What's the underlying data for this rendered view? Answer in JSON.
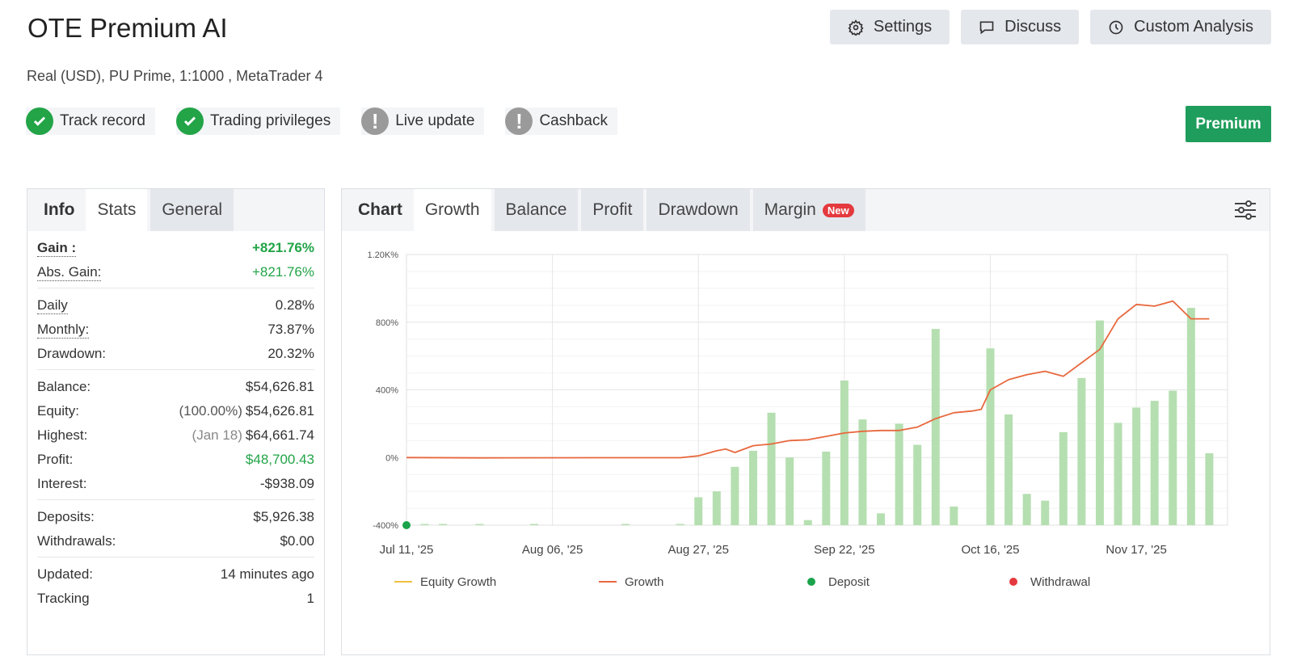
{
  "header": {
    "title": "OTE Premium AI",
    "subtitle": "Real (USD), PU Prime, 1:1000 , MetaTrader 4",
    "buttons": {
      "settings": "Settings",
      "discuss": "Discuss",
      "custom_analysis": "Custom Analysis"
    },
    "premium": "Premium"
  },
  "badges": [
    {
      "label": "Track record",
      "status": "ok"
    },
    {
      "label": "Trading privileges",
      "status": "ok"
    },
    {
      "label": "Live update",
      "status": "warn"
    },
    {
      "label": "Cashback",
      "status": "warn"
    }
  ],
  "left_tabs": {
    "info": "Info",
    "stats": "Stats",
    "general": "General"
  },
  "stats": {
    "gain_label": "Gain :",
    "gain": "+821.76%",
    "abs_gain_label": "Abs. Gain:",
    "abs_gain": "+821.76%",
    "daily_label": "Daily",
    "daily": "0.28%",
    "monthly_label": "Monthly:",
    "monthly": "73.87%",
    "drawdown_label": "Drawdown:",
    "drawdown": "20.32%",
    "balance_label": "Balance:",
    "balance": "$54,626.81",
    "equity_label": "Equity:",
    "equity_pct": "(100.00%)",
    "equity": "$54,626.81",
    "highest_label": "Highest:",
    "highest_date": "(Jan 18)",
    "highest": "$64,661.74",
    "profit_label": "Profit:",
    "profit": "$48,700.43",
    "interest_label": "Interest:",
    "interest": "-$938.09",
    "deposits_label": "Deposits:",
    "deposits": "$5,926.38",
    "withdrawals_label": "Withdrawals:",
    "withdrawals": "$0.00",
    "updated_label": "Updated:",
    "updated": "14 minutes ago",
    "tracking_label": "Tracking",
    "tracking": "1"
  },
  "chart_tabs": {
    "chart": "Chart",
    "growth": "Growth",
    "balance": "Balance",
    "profit": "Profit",
    "drawdown": "Drawdown",
    "margin": "Margin",
    "new_badge": "New"
  },
  "colors": {
    "bar": "#b5dfb0",
    "growth": "#e8683d",
    "equity": "#f0c040",
    "deposit": "#1aa34a",
    "withdrawal": "#e4393e",
    "accent": "#1f9d5c"
  },
  "chart_data": {
    "type": "bar",
    "ylim": [
      -400,
      1200
    ],
    "y_ticks": [
      -400,
      0,
      400,
      800,
      1200
    ],
    "y_tick_labels": [
      "-400%",
      "0%",
      "400%",
      "800%",
      "1.20K%"
    ],
    "x_tick_labels": [
      "Jul 11, '25",
      "Aug 06, '25",
      "Aug 27, '25",
      "Sep 22, '25",
      "Oct 16, '25",
      "Nov 17, '25"
    ],
    "x_range": [
      0,
      45
    ],
    "x_tick_positions": [
      0,
      8,
      16,
      24,
      32,
      40
    ],
    "bars": [
      {
        "x": 1,
        "y": -395
      },
      {
        "x": 2,
        "y": -395
      },
      {
        "x": 4,
        "y": -395
      },
      {
        "x": 7,
        "y": -395
      },
      {
        "x": 12,
        "y": -395
      },
      {
        "x": 15,
        "y": -395
      },
      {
        "x": 16,
        "y": -235
      },
      {
        "x": 17,
        "y": -200
      },
      {
        "x": 18,
        "y": -55
      },
      {
        "x": 19,
        "y": 40
      },
      {
        "x": 20,
        "y": 265
      },
      {
        "x": 21,
        "y": 0
      },
      {
        "x": 22,
        "y": -370
      },
      {
        "x": 23,
        "y": 35
      },
      {
        "x": 24,
        "y": 455
      },
      {
        "x": 25,
        "y": 225
      },
      {
        "x": 26,
        "y": -330
      },
      {
        "x": 27,
        "y": 200
      },
      {
        "x": 28,
        "y": 75
      },
      {
        "x": 29,
        "y": 760
      },
      {
        "x": 30,
        "y": -290
      },
      {
        "x": 32,
        "y": 645
      },
      {
        "x": 33,
        "y": 255
      },
      {
        "x": 34,
        "y": -215
      },
      {
        "x": 35,
        "y": -255
      },
      {
        "x": 36,
        "y": 150
      },
      {
        "x": 37,
        "y": 470
      },
      {
        "x": 38,
        "y": 810
      },
      {
        "x": 39,
        "y": 205
      },
      {
        "x": 40,
        "y": 295
      },
      {
        "x": 41,
        "y": 335
      },
      {
        "x": 42,
        "y": 395
      },
      {
        "x": 43,
        "y": 885
      },
      {
        "x": 44,
        "y": 25
      }
    ],
    "series": [
      {
        "name": "Growth",
        "points": [
          [
            0,
            0
          ],
          [
            4,
            -2
          ],
          [
            10,
            -1
          ],
          [
            15,
            -1
          ],
          [
            16,
            10
          ],
          [
            17,
            40
          ],
          [
            17.5,
            50
          ],
          [
            18,
            30
          ],
          [
            19,
            70
          ],
          [
            20,
            80
          ],
          [
            21,
            100
          ],
          [
            22,
            105
          ],
          [
            23,
            125
          ],
          [
            24,
            145
          ],
          [
            25,
            155
          ],
          [
            26,
            160
          ],
          [
            27,
            160
          ],
          [
            28,
            180
          ],
          [
            29,
            230
          ],
          [
            30,
            265
          ],
          [
            31,
            275
          ],
          [
            31.5,
            285
          ],
          [
            32,
            400
          ],
          [
            33,
            460
          ],
          [
            34,
            490
          ],
          [
            35,
            510
          ],
          [
            35.5,
            495
          ],
          [
            36,
            480
          ],
          [
            37,
            560
          ],
          [
            38,
            640
          ],
          [
            39,
            820
          ],
          [
            40,
            905
          ],
          [
            41,
            895
          ],
          [
            42,
            925
          ],
          [
            43,
            820
          ],
          [
            44,
            820
          ]
        ]
      }
    ],
    "deposit_points": [
      [
        0,
        -400
      ]
    ],
    "legend": [
      "Equity Growth",
      "Growth",
      "Deposit",
      "Withdrawal"
    ],
    "grid": true
  }
}
